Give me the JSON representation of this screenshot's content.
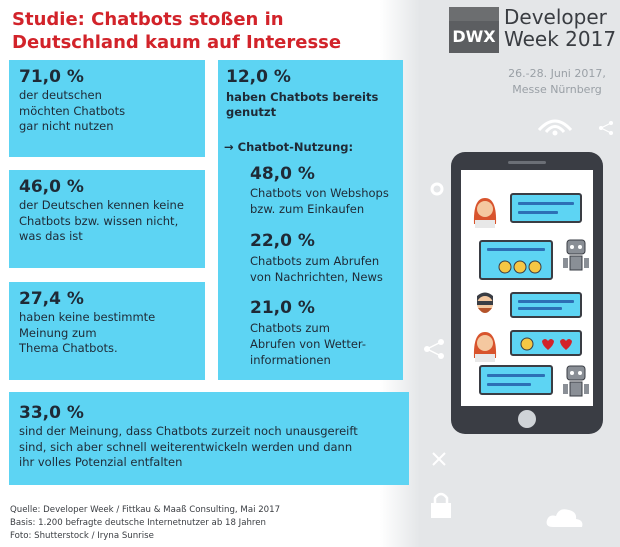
{
  "title": {
    "line1": "Studie: Chatbots stoßen in",
    "line2": "Deutschland kaum auf Interesse"
  },
  "brand": {
    "logo_text": "DWX",
    "name_line1": "Developer",
    "name_line2": "Week 2017",
    "dates": "26.-28. Juni 2017,",
    "venue": "Messe Nürnberg"
  },
  "stats": {
    "s1": {
      "value": "71,0 %",
      "text": [
        "der deutschen",
        "möchten Chatbots",
        "gar nicht nutzen"
      ]
    },
    "s2": {
      "value": "46,0 %",
      "text": [
        "der Deutschen kennen keine",
        "Chatbots bzw. wissen nicht,",
        "was das ist"
      ]
    },
    "s3": {
      "value": "27,4 %",
      "text": [
        "haben keine bestimmte",
        "Meinung zum",
        "Thema Chatbots."
      ]
    },
    "s4": {
      "value": "33,0 %",
      "text": [
        "sind der Meinung, dass Chatbots zurzeit noch unausgereift",
        "sind, sich aber schnell weiterentwickeln werden und dann",
        "ihr volles Potenzial entfalten"
      ]
    }
  },
  "right": {
    "value": "12,0 %",
    "text": [
      "haben Chatbots bereits",
      "genutzt"
    ],
    "usage_heading": "→ Chatbot-Nutzung:",
    "items": [
      {
        "value": "48,0 %",
        "text": [
          "Chatbots von Webshops",
          "bzw. zum Einkaufen"
        ]
      },
      {
        "value": "22,0 %",
        "text": [
          "Chatbots zum Abrufen",
          "von Nachrichten, News"
        ]
      },
      {
        "value": "21,0 %",
        "text": [
          "Chatbots zum",
          "Abrufen von Wetter-",
          "informationen"
        ]
      }
    ]
  },
  "sources": [
    "Quelle: Developer Week / Fittkau & Maaß Consulting, Mai 2017",
    "Basis: 1.200 befragte deutsche Internetnutzer ab 18 Jahren",
    "Foto: Shutterstock / Iryna Sunrise"
  ],
  "colors": {
    "accent": "#d2232a",
    "panel": "#5dd4f3",
    "text": "#1f2a36"
  }
}
